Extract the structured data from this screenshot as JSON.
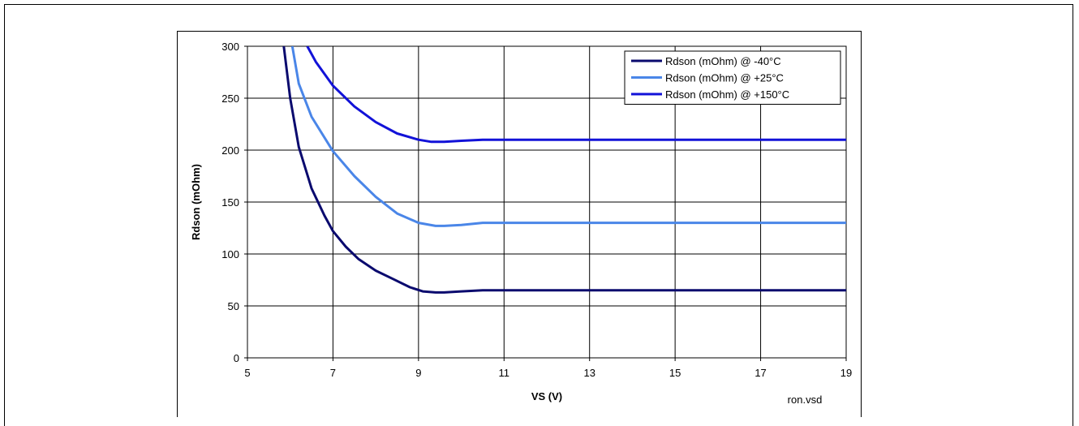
{
  "chart_data": {
    "type": "line",
    "title": "",
    "xlabel": "VS (V)",
    "ylabel": "Rdson (mOhm)",
    "xlim": [
      5,
      19
    ],
    "ylim": [
      0,
      300
    ],
    "xticks": [
      5,
      7,
      9,
      11,
      13,
      15,
      17,
      19
    ],
    "yticks": [
      0,
      50,
      100,
      150,
      200,
      250,
      300
    ],
    "grid": true,
    "legend_position": "top-right",
    "annotation": "ron.vsd",
    "series": [
      {
        "name": "Rdson (mOhm) @ -40°C",
        "color": "#0a0a6e",
        "x": [
          5.85,
          6.0,
          6.2,
          6.5,
          6.8,
          7.0,
          7.3,
          7.6,
          8.0,
          8.4,
          8.8,
          9.1,
          9.4,
          9.6,
          10.0,
          10.5,
          11.0,
          13.0,
          15.0,
          17.0,
          19.0
        ],
        "y": [
          300,
          250,
          203,
          163,
          137,
          122,
          107,
          95,
          84,
          76,
          68,
          64,
          63,
          63,
          64,
          65,
          65,
          65,
          65,
          65,
          65
        ]
      },
      {
        "name": "Rdson (mOhm) @ +25°C",
        "color": "#4a86e8",
        "x": [
          6.05,
          6.2,
          6.5,
          7.0,
          7.5,
          8.0,
          8.5,
          9.0,
          9.4,
          9.6,
          10.0,
          10.5,
          11.0,
          13.0,
          15.0,
          17.0,
          19.0
        ],
        "y": [
          300,
          264,
          232,
          199,
          175,
          155,
          139,
          130,
          127,
          127,
          128,
          130,
          130,
          130,
          130,
          130,
          130
        ]
      },
      {
        "name": "Rdson (mOhm) @ +150°C",
        "color": "#1212d8",
        "x": [
          6.4,
          6.6,
          7.0,
          7.5,
          8.0,
          8.5,
          9.0,
          9.3,
          9.6,
          10.0,
          10.5,
          11.0,
          13.0,
          15.0,
          17.0,
          19.0
        ],
        "y": [
          300,
          285,
          262,
          242,
          227,
          216,
          210,
          208,
          208,
          209,
          210,
          210,
          210,
          210,
          210,
          210
        ]
      }
    ]
  }
}
